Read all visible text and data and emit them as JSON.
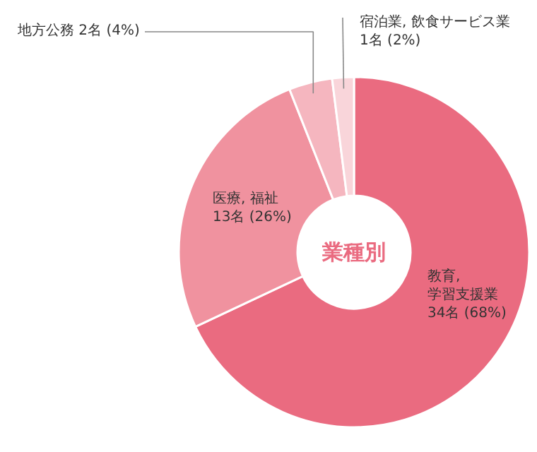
{
  "chart_data": {
    "type": "donut",
    "title": "業種別",
    "categories": [
      "教育, 学習支援業",
      "医療, 福祉",
      "地方公務",
      "宿泊業, 飲食サービス業"
    ],
    "values": [
      34,
      13,
      2,
      1
    ],
    "value_labels": [
      "34名 (68%)",
      "13名 (26%)",
      "2名 (4%)",
      "1名 (2%)"
    ],
    "colors": [
      "#ea6b80",
      "#f0929f",
      "#f5b6bf",
      "#f9d5da"
    ]
  }
}
